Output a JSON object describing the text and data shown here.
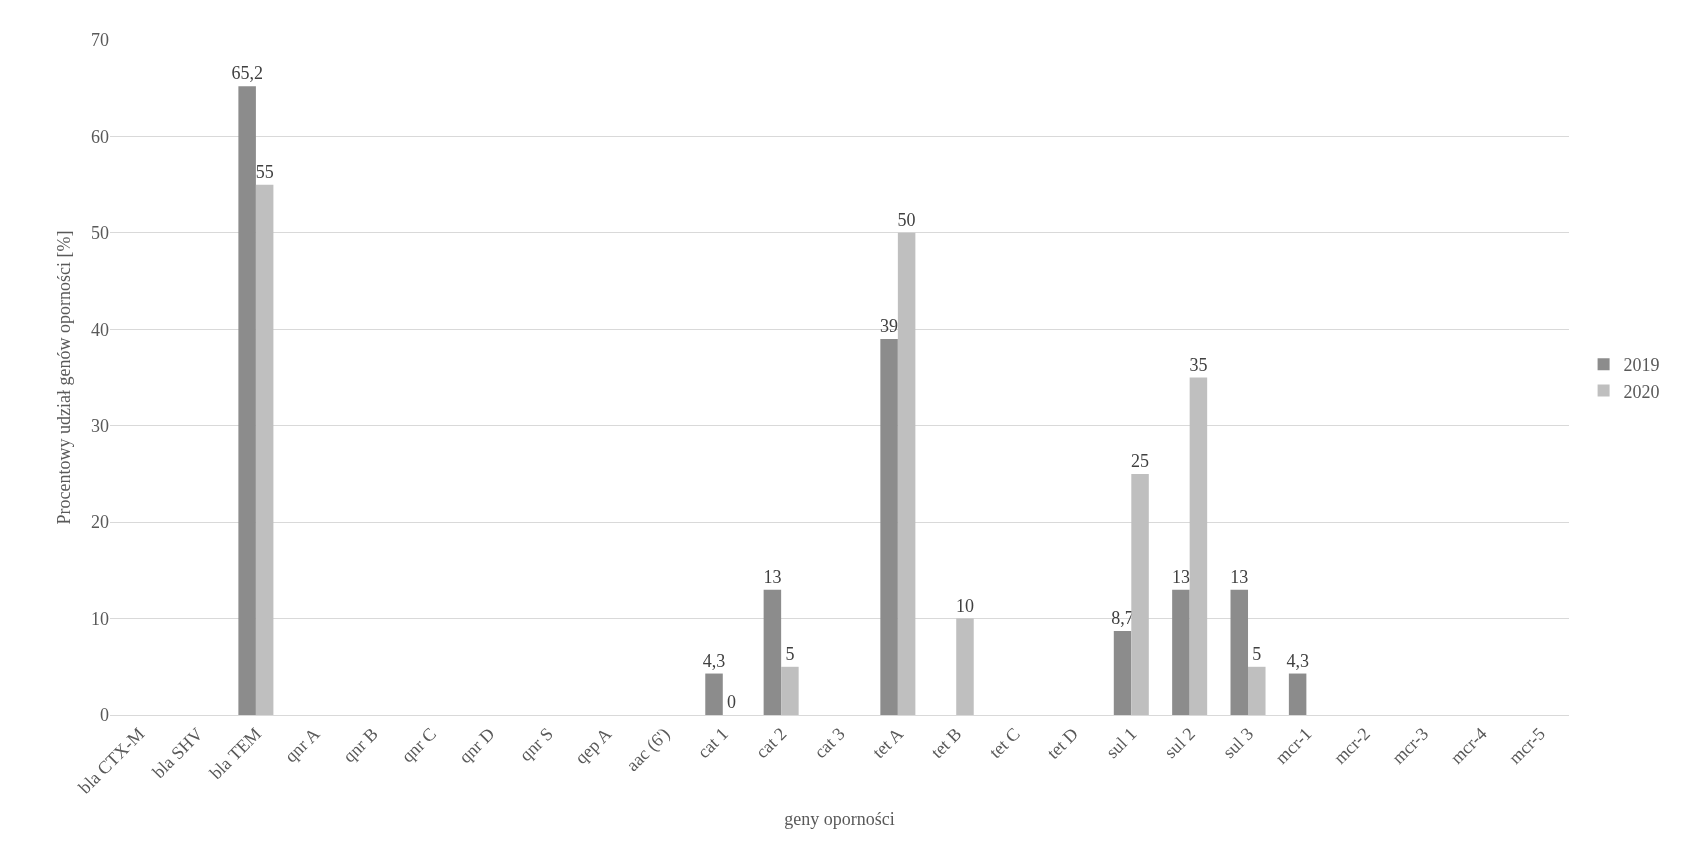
{
  "chart_data": {
    "type": "bar",
    "xlabel": "geny oporności",
    "ylabel": "Procentowy udział genów oporności [%]",
    "categories": [
      "bla CTX-M",
      "bla SHV",
      "bla TEM",
      "qnr A",
      "qnr B",
      "qnr C",
      "qnr D",
      "qnr S",
      "qep A",
      "aac (6')",
      "cat 1",
      "cat 2",
      "cat 3",
      "tet A",
      "tet B",
      "tet C",
      "tet D",
      "sul 1",
      "sul 2",
      "sul 3",
      "mcr-1",
      "mcr-2",
      "mcr-3",
      "mcr-4",
      "mcr-5"
    ],
    "series": [
      {
        "name": "2019",
        "color": "#8c8c8c",
        "values": [
          null,
          null,
          65.2,
          null,
          null,
          null,
          null,
          null,
          null,
          null,
          4.3,
          13,
          null,
          39,
          null,
          null,
          null,
          8.7,
          13,
          13,
          4.3,
          null,
          null,
          null,
          null
        ],
        "value_labels": [
          null,
          null,
          "65,2",
          null,
          null,
          null,
          null,
          null,
          null,
          null,
          "4,3",
          "13",
          null,
          "39",
          null,
          null,
          null,
          "8,7",
          "13",
          "13",
          "4,3",
          null,
          null,
          null,
          null
        ]
      },
      {
        "name": "2020",
        "color": "#bfbfbf",
        "values": [
          null,
          null,
          55,
          null,
          null,
          null,
          null,
          null,
          null,
          null,
          0,
          5,
          null,
          50,
          10,
          null,
          null,
          25,
          35,
          5,
          null,
          null,
          null,
          null,
          null
        ],
        "value_labels": [
          null,
          null,
          "55",
          null,
          null,
          null,
          null,
          null,
          null,
          null,
          "0",
          "5",
          null,
          "50",
          "10",
          null,
          null,
          "25",
          "35",
          "5",
          null,
          null,
          null,
          null,
          null
        ]
      }
    ],
    "ylim": [
      0,
      70
    ],
    "yticks": [
      0,
      10,
      20,
      30,
      40,
      50,
      60,
      70
    ],
    "grid": "y",
    "legend": "right"
  }
}
